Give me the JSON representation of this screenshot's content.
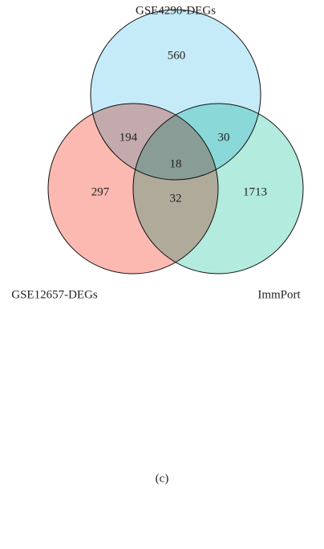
{
  "chart_data": {
    "type": "venn",
    "sets": [
      {
        "name": "GSE4290-DEGs",
        "color": "#c6ebf8"
      },
      {
        "name": "GSE12657-DEGs",
        "color": "#fbb9b1"
      },
      {
        "name": "ImmPort",
        "color": "#b3ebdf"
      }
    ],
    "values": [
      560,
      194,
      30,
      18,
      297,
      32,
      1713
    ],
    "caption": "(c)"
  }
}
